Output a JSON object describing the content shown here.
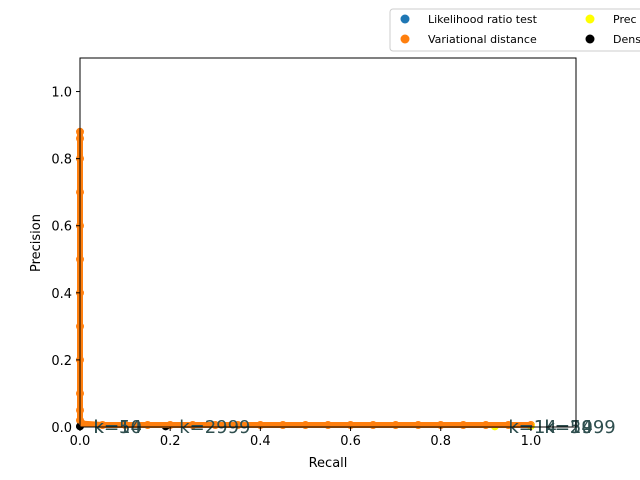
{
  "chart_data": {
    "type": "scatter",
    "title": "",
    "xlabel": "Recall",
    "ylabel": "Precision",
    "xlim": [
      0,
      1.1
    ],
    "ylim": [
      0,
      1.1
    ],
    "x_ticks": [
      "0.0",
      "0.2",
      "0.4",
      "0.6",
      "0.8",
      "1.0"
    ],
    "y_ticks": [
      "0.0",
      "0.2",
      "0.4",
      "0.6",
      "0.8",
      "1.0"
    ],
    "grid": false,
    "legend_placement": "top-right, outside plot",
    "legend": [
      {
        "label": "Likelihood ratio test",
        "color": "#1f77b4"
      },
      {
        "label": "Variational distance",
        "color": "#ff7f0e"
      },
      {
        "label": "Prec",
        "color": "#ffff00"
      },
      {
        "label": "Dens",
        "color": "#000000"
      }
    ],
    "series": [
      {
        "name": "Variational distance",
        "color": "#ff7f0e",
        "points": [
          [
            0.0,
            0.88
          ],
          [
            0.0,
            0.86
          ],
          [
            0.0,
            0.8
          ],
          [
            0.0,
            0.7
          ],
          [
            0.0,
            0.6
          ],
          [
            0.0,
            0.5
          ],
          [
            0.0,
            0.4
          ],
          [
            0.0,
            0.3
          ],
          [
            0.0,
            0.2
          ],
          [
            0.0,
            0.1
          ],
          [
            0.0,
            0.05
          ],
          [
            0.0,
            0.02
          ],
          [
            0.005,
            0.01
          ],
          [
            0.05,
            0.006
          ],
          [
            0.1,
            0.006
          ],
          [
            0.15,
            0.006
          ],
          [
            0.2,
            0.006
          ],
          [
            0.25,
            0.006
          ],
          [
            0.3,
            0.006
          ],
          [
            0.35,
            0.006
          ],
          [
            0.4,
            0.006
          ],
          [
            0.45,
            0.006
          ],
          [
            0.5,
            0.006
          ],
          [
            0.55,
            0.006
          ],
          [
            0.6,
            0.006
          ],
          [
            0.65,
            0.006
          ],
          [
            0.7,
            0.006
          ],
          [
            0.75,
            0.006
          ],
          [
            0.8,
            0.006
          ],
          [
            0.85,
            0.006
          ],
          [
            0.9,
            0.006
          ],
          [
            0.95,
            0.006
          ],
          [
            1.0,
            0.006
          ]
        ]
      },
      {
        "name": "Prec",
        "color": "#ffff00",
        "points": [
          [
            0.92,
            0.002
          ],
          [
            1.0,
            0.003
          ]
        ]
      },
      {
        "name": "Dens",
        "color": "#000000",
        "points": [
          [
            0.0,
            0.002
          ],
          [
            0.19,
            0.002
          ]
        ]
      }
    ],
    "annotations": [
      {
        "text": "k=1",
        "x": 0.03,
        "y": 0.0
      },
      {
        "text": "k=14",
        "x": 0.03,
        "y": 0.0
      },
      {
        "text": "k=50",
        "x": 0.03,
        "y": 0.0
      },
      {
        "text": "k=2999",
        "x": 0.22,
        "y": 0.0
      },
      {
        "text": "k=1",
        "x": 0.95,
        "y": 0.0
      },
      {
        "text": "k=14",
        "x": 0.95,
        "y": 0.0
      },
      {
        "text": "k=50",
        "x": 1.03,
        "y": 0.0
      },
      {
        "text": "k=2999",
        "x": 1.03,
        "y": 0.0
      },
      {
        "text": "k=1",
        "x": 1.03,
        "y": 0.0
      },
      {
        "text": "k=14",
        "x": 1.03,
        "y": 0.0
      }
    ]
  }
}
